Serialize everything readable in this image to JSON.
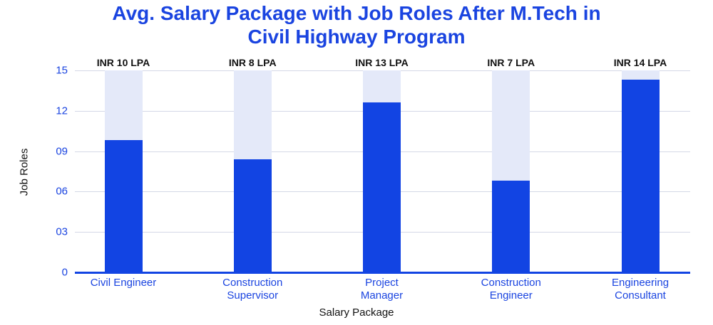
{
  "chart_data": {
    "type": "bar",
    "title": "Avg. Salary Package with Job Roles After M.Tech in Civil Highway Program",
    "x_label": "Salary Package",
    "y_label": "Job Roles",
    "categories": [
      "Civil Engineer",
      "Construction Supervisor",
      "Project Manager",
      "Construction Engineer",
      "Engineering Consultant"
    ],
    "values": [
      9.8,
      8.4,
      12.6,
      6.8,
      14.3
    ],
    "value_labels": [
      "INR 10 LPA",
      "INR 8 LPA",
      "INR 13 LPA",
      "INR 7 LPA",
      "INR 14 LPA"
    ],
    "color": "#1244e3",
    "background_color": "#e4e9f9",
    "ylim": [
      0,
      15
    ],
    "yticks": [
      0,
      {
        "value": 3,
        "label": "03"
      },
      {
        "value": 6,
        "label": "06"
      },
      {
        "value": 9,
        "label": "09"
      },
      12,
      15
    ],
    "grid": true
  }
}
